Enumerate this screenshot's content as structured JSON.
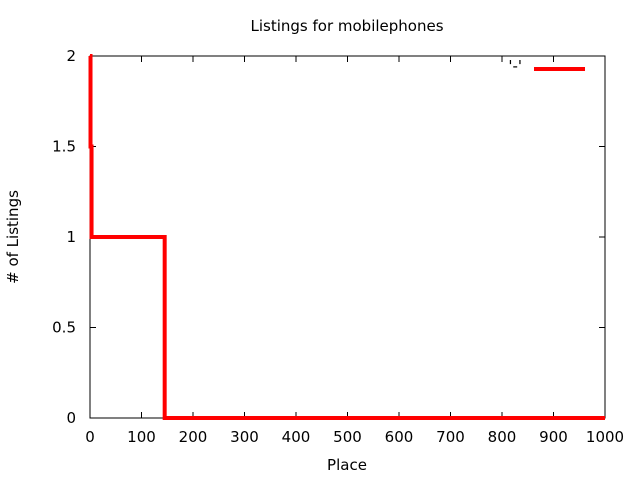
{
  "chart_data": {
    "type": "line",
    "title": "Listings for mobilephones",
    "xlabel": "Place",
    "ylabel": "# of Listings",
    "xlim": [
      0,
      1000
    ],
    "ylim": [
      0,
      2
    ],
    "xticks": [
      "0",
      "100",
      "200",
      "300",
      "400",
      "500",
      "600",
      "700",
      "800",
      "900",
      "1000"
    ],
    "yticks": [
      "0",
      "0.5",
      "1",
      "1.5",
      "2"
    ],
    "grid": false,
    "legend_position": "top-right",
    "series": [
      {
        "name": "'-'",
        "color": "#ff0000",
        "step": true,
        "points": [
          {
            "x": 0,
            "y": 2
          },
          {
            "x": 1,
            "y": 1.5
          },
          {
            "x": 3,
            "y": 1
          },
          {
            "x": 145,
            "y": 0
          },
          {
            "x": 1000,
            "y": 0
          }
        ]
      }
    ]
  }
}
